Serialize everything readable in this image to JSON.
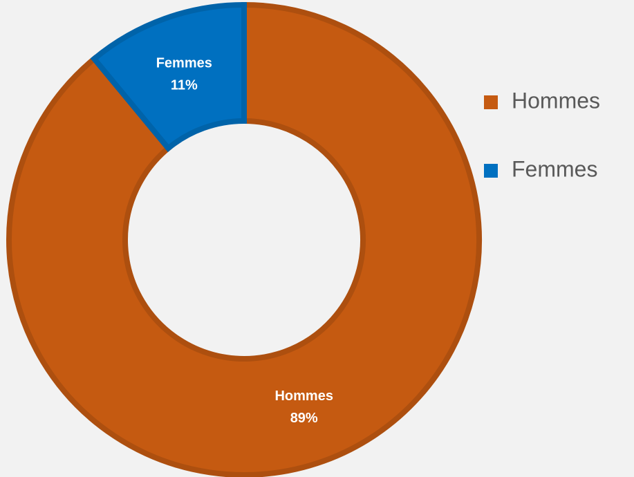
{
  "chart_data": {
    "type": "donut",
    "categories": [
      "Hommes",
      "Femmes"
    ],
    "values": [
      89,
      11
    ],
    "value_labels": [
      "89%",
      "11%"
    ],
    "colors": [
      "#c55a11",
      "#0070c0"
    ],
    "legend": "right"
  }
}
